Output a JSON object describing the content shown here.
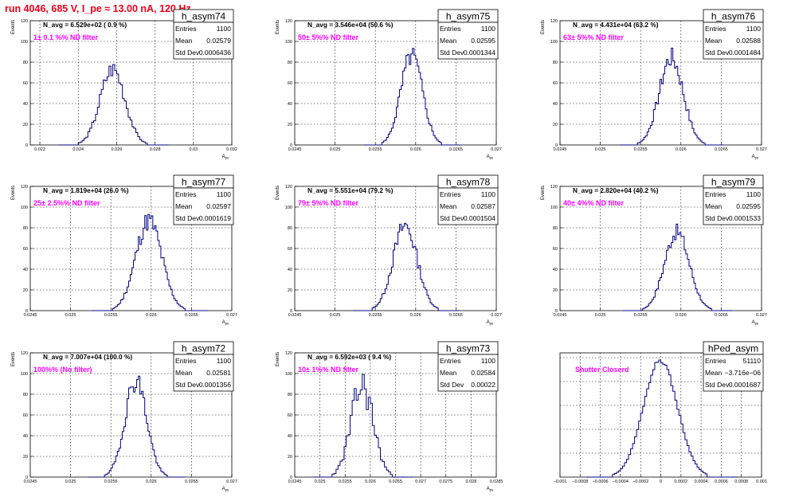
{
  "title": "run 4046,   685 V, I_pe ≈ 13.00 nA, 120 Hz",
  "colors": {
    "title": "#e8001a",
    "histogram": "#000080",
    "filter_text": "#ff00ff",
    "grid": "#000000"
  },
  "stats_labels": {
    "entries": "Entries",
    "mean": "Mean",
    "std": "Std Dev"
  },
  "chart_data": [
    {
      "type": "histogram",
      "name": "h_asym74",
      "xlabel": "A",
      "xlabel_sub": "pe",
      "ylabel": "Events",
      "xlim": [
        0.0215,
        0.032
      ],
      "ylim": [
        0,
        120
      ],
      "xticks": [
        0.022,
        0.024,
        0.026,
        0.028,
        0.03,
        0.032
      ],
      "xtick_labels": [
        "0.022",
        "0.024",
        "0.026",
        "0.028",
        "0.03",
        "0.032"
      ],
      "yticks": [
        0,
        20,
        40,
        60,
        80,
        100,
        120
      ],
      "entries": "1100",
      "mean": "0.02579",
      "std_dev": "0.0006436",
      "n_avg": "N_avg = 6.529e+02 ( 0.9 %)",
      "note": "1± 0.1 %% ND filter",
      "bin_width": 0.0001,
      "mean_value": 0.02579,
      "std_value": 0.0006436,
      "peak": 74,
      "jitter": 0.12,
      "seed": 3
    },
    {
      "type": "histogram",
      "name": "h_asym75",
      "xlabel": "A",
      "xlabel_sub": "pe",
      "ylabel": "Events",
      "xlim": [
        0.0245,
        0.027
      ],
      "ylim": [
        0,
        120
      ],
      "xticks": [
        0.0245,
        0.025,
        0.0255,
        0.026,
        0.0265,
        0.027
      ],
      "xtick_labels": [
        "0.0245",
        "0.025",
        "0.0255",
        "0.026",
        "0.0265",
        "0.027"
      ],
      "yticks": [
        0,
        20,
        40,
        60,
        80,
        100,
        120
      ],
      "entries": "1100",
      "mean": "0.02595",
      "std_dev": "0.0001344",
      "n_avg": "N_avg = 3.546e+04 (50.6 %)",
      "note": "50± 5%% ND filter",
      "bin_width": 2e-05,
      "mean_value": 0.02595,
      "std_value": 0.0001344,
      "peak": 86,
      "jitter": 0.12,
      "seed": 5
    },
    {
      "type": "histogram",
      "name": "h_asym76",
      "xlabel": "A",
      "xlabel_sub": "pe",
      "ylabel": "Events",
      "xlim": [
        0.0245,
        0.027
      ],
      "ylim": [
        0,
        120
      ],
      "xticks": [
        0.0245,
        0.025,
        0.0255,
        0.026,
        0.0265,
        0.027
      ],
      "xtick_labels": [
        "0.0245",
        "0.025",
        "0.0255",
        "0.026",
        "0.0265",
        "0.027"
      ],
      "yticks": [
        0,
        20,
        40,
        60,
        80,
        100,
        120
      ],
      "entries": "1100",
      "mean": "0.02588",
      "std_dev": "0.0001484",
      "n_avg": "N_avg = 4.431e+04 (63.2 %)",
      "note": "63± 5%% ND filter",
      "bin_width": 2e-05,
      "mean_value": 0.02588,
      "std_value": 0.0001484,
      "peak": 84,
      "jitter": 0.12,
      "seed": 7
    },
    {
      "type": "histogram",
      "name": "h_asym77",
      "xlabel": "A",
      "xlabel_sub": "pe",
      "ylabel": "Events",
      "xlim": [
        0.0245,
        0.027
      ],
      "ylim": [
        0,
        120
      ],
      "xticks": [
        0.0245,
        0.025,
        0.0255,
        0.026,
        0.0265,
        0.027
      ],
      "xtick_labels": [
        "0.0245",
        "0.025",
        "0.0255",
        "0.026",
        "0.0265",
        "0.027"
      ],
      "yticks": [
        0,
        20,
        40,
        60,
        80,
        100,
        120
      ],
      "entries": "1100",
      "mean": "0.02597",
      "std_dev": "0.0001619",
      "n_avg": "N_avg = 1.819e+04 (26.0 %)",
      "note": "25± 2.5%% ND filter",
      "bin_width": 2e-05,
      "mean_value": 0.02597,
      "std_value": 0.0001619,
      "peak": 87,
      "jitter": 0.12,
      "seed": 11
    },
    {
      "type": "histogram",
      "name": "h_asym78",
      "xlabel": "A",
      "xlabel_sub": "pe",
      "ylabel": "Events",
      "xlim": [
        0.0245,
        0.027
      ],
      "ylim": [
        0,
        120
      ],
      "xticks": [
        0.0245,
        0.025,
        0.0255,
        0.026,
        0.0265,
        0.027
      ],
      "xtick_labels": [
        "0.0245",
        "0.025",
        "0.0255",
        "0.026",
        "0.0265",
        "0.027"
      ],
      "yticks": [
        0,
        20,
        40,
        60,
        80,
        100,
        120
      ],
      "entries": "1100",
      "mean": "0.02587",
      "std_dev": "0.0001504",
      "n_avg": "N_avg = 5.551e+04 (79.2 %)",
      "note": "79± 5%% ND filter",
      "bin_width": 2e-05,
      "mean_value": 0.02587,
      "std_value": 0.0001504,
      "peak": 82,
      "jitter": 0.12,
      "seed": 13
    },
    {
      "type": "histogram",
      "name": "h_asym79",
      "xlabel": "A",
      "xlabel_sub": "pe",
      "ylabel": "Events",
      "xlim": [
        0.0245,
        0.027
      ],
      "ylim": [
        0,
        120
      ],
      "xticks": [
        0.0245,
        0.025,
        0.0255,
        0.026,
        0.0265,
        0.027
      ],
      "xtick_labels": [
        "0.0245",
        "0.025",
        "0.0255",
        "0.026",
        "0.0265",
        "0.027"
      ],
      "yticks": [
        0,
        20,
        40,
        60,
        80,
        100,
        120
      ],
      "entries": "1100",
      "mean": "0.02595",
      "std_dev": "0.0001533",
      "n_avg": "N_avg = 2.820e+04 (40.2 %)",
      "note": "40± 4%% ND filter",
      "bin_width": 2e-05,
      "mean_value": 0.02595,
      "std_value": 0.0001533,
      "peak": 76,
      "jitter": 0.1,
      "seed": 17
    },
    {
      "type": "histogram",
      "name": "h_asym72",
      "xlabel": "A",
      "xlabel_sub": "pe",
      "ylabel": "Events",
      "xlim": [
        0.0245,
        0.027
      ],
      "ylim": [
        0,
        120
      ],
      "xticks": [
        0.0245,
        0.025,
        0.0255,
        0.026,
        0.0265,
        0.027
      ],
      "xtick_labels": [
        "0.0245",
        "0.025",
        "0.0255",
        "0.026",
        "0.0265",
        "0.027"
      ],
      "yticks": [
        0,
        20,
        40,
        60,
        80,
        100,
        120
      ],
      "entries": "1100",
      "mean": "0.02581",
      "std_dev": "0.0001356",
      "n_avg": "N_avg = 7.007e+04 (100.0 %)",
      "note": "100%% (No filter)",
      "bin_width": 2e-05,
      "mean_value": 0.02581,
      "std_value": 0.0001356,
      "peak": 94,
      "jitter": 0.12,
      "seed": 19
    },
    {
      "type": "histogram",
      "name": "h_asym73",
      "xlabel": "A",
      "xlabel_sub": "pe",
      "ylabel": "Events",
      "xlim": [
        0.0245,
        0.0285
      ],
      "ylim": [
        0,
        120
      ],
      "xticks": [
        0.0245,
        0.025,
        0.0255,
        0.026,
        0.0265,
        0.027,
        0.0275,
        0.028,
        0.0285
      ],
      "xtick_labels": [
        "0.0245",
        "0.025",
        "0.0255",
        "0.026",
        "0.0265",
        "0.027",
        "0.0275",
        "0.028",
        "0.0285"
      ],
      "yticks": [
        0,
        20,
        40,
        60,
        80,
        100,
        120
      ],
      "entries": "1100",
      "mean": "0.02584",
      "std_dev": "0.00022",
      "n_avg": "N_avg = 6.592e+03 ( 9.4 %)",
      "note": "10± 1%% ND filter",
      "bin_width": 4e-05,
      "mean_value": 0.02584,
      "std_value": 0.00022,
      "peak": 88,
      "jitter": 0.2,
      "seed": 23
    },
    {
      "type": "histogram",
      "name": "hPed_asym",
      "xlabel": "",
      "xlabel_sub": "",
      "ylabel": "",
      "xlim": [
        -0.001,
        0.001
      ],
      "ylim": [
        0,
        2600
      ],
      "xticks": [
        -0.001,
        -0.0008,
        -0.0006,
        -0.0004,
        -0.0002,
        0,
        0.0002,
        0.0004,
        0.0006,
        0.0008,
        0.001
      ],
      "xtick_labels": [
        "−0.001",
        "−0.0008",
        "−0.0006",
        "−0.0004",
        "−0.0002",
        "0",
        "0.0002",
        "0.0004",
        "0.0006",
        "0.0008",
        "0.001"
      ],
      "yticks": [],
      "entries": "51110",
      "mean": "−3.716e−06",
      "std_dev": "0.0001687",
      "n_avg": "",
      "note": "Shutter Closerd",
      "bin_width": 2e-05,
      "mean_value": -3.7e-06,
      "std_value": 0.0001687,
      "peak": 2450,
      "jitter": 0.02,
      "seed": 29
    }
  ]
}
